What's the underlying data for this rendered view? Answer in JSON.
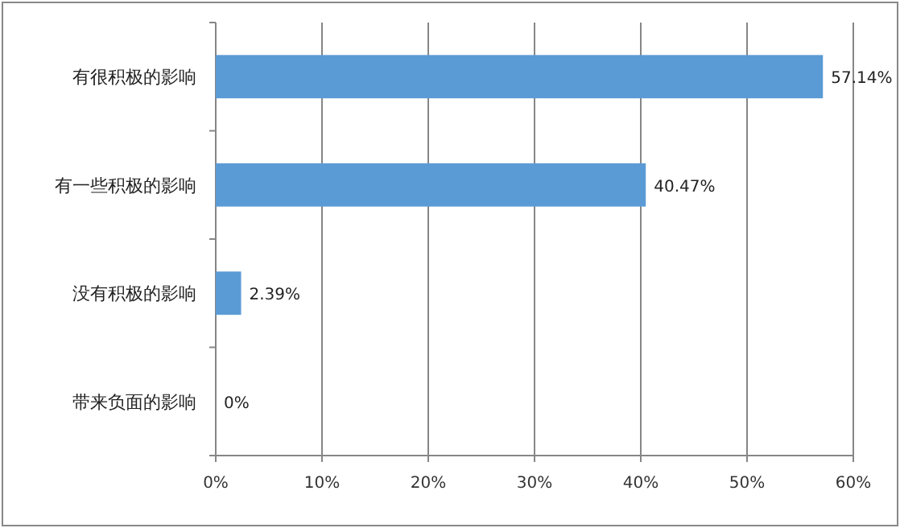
{
  "chart_data": {
    "type": "bar",
    "orientation": "horizontal",
    "categories": [
      "有很积极的影响",
      "有一些积极的影响",
      "没有积极的影响",
      "带来负面的影响"
    ],
    "values": [
      57.14,
      40.47,
      2.39,
      0
    ],
    "value_labels": [
      "57.14%",
      "40.47%",
      "2.39%",
      "0%"
    ],
    "color": "#5b9bd5",
    "xlim": [
      0,
      60
    ],
    "xticks": [
      {
        "value": 0,
        "label": "0%"
      },
      {
        "value": 10,
        "label": "10%"
      },
      {
        "value": 20,
        "label": "20%"
      },
      {
        "value": 30,
        "label": "30%"
      },
      {
        "value": 40,
        "label": "40%"
      },
      {
        "value": 50,
        "label": "50%"
      },
      {
        "value": 60,
        "label": "60%"
      }
    ],
    "grid": "x"
  }
}
